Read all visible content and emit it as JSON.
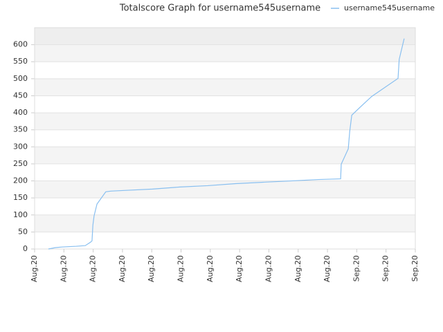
{
  "chart_data": {
    "type": "line",
    "title": "Totalscore Graph for username545username",
    "x": [
      0.47,
      0.71,
      0.95,
      1.42,
      1.73,
      1.91,
      1.96,
      1.99,
      2.03,
      2.13,
      2.43,
      2.6,
      3.07,
      4.02,
      4.96,
      5.91,
      6.86,
      7.8,
      8.75,
      9.69,
      10.45,
      10.47,
      10.71,
      10.76,
      10.83,
      11.11,
      11.51,
      12.41,
      12.45,
      12.62
    ],
    "series": [
      {
        "name": "username545username",
        "color": "#88bff0",
        "values": [
          0,
          4,
          6,
          8,
          10,
          20,
          24,
          70,
          97,
          132,
          168,
          170,
          172,
          176,
          182,
          186,
          192,
          196,
          200,
          204,
          206,
          249,
          294,
          345,
          393,
          416,
          448,
          501,
          557,
          618
        ]
      }
    ],
    "xlim": [
      0,
      13
    ],
    "xticks": [
      {
        "value": 0,
        "label": "Aug.20"
      },
      {
        "value": 1,
        "label": "Aug.20"
      },
      {
        "value": 2,
        "label": "Aug.20"
      },
      {
        "value": 3,
        "label": "Aug.20"
      },
      {
        "value": 4,
        "label": "Aug.20"
      },
      {
        "value": 5,
        "label": "Aug.20"
      },
      {
        "value": 6,
        "label": "Aug.20"
      },
      {
        "value": 7,
        "label": "Aug.20"
      },
      {
        "value": 8,
        "label": "Aug.20"
      },
      {
        "value": 9,
        "label": "Aug.20"
      },
      {
        "value": 10,
        "label": "Aug.20"
      },
      {
        "value": 11,
        "label": "Sep.20"
      },
      {
        "value": 12,
        "label": "Sep.20"
      },
      {
        "value": 13,
        "label": "Sep.20"
      }
    ],
    "ylim": [
      0,
      650
    ],
    "yticks": [
      0,
      50,
      100,
      150,
      200,
      250,
      300,
      350,
      400,
      450,
      500,
      550,
      600
    ],
    "grid": true,
    "legend": "top-right"
  }
}
